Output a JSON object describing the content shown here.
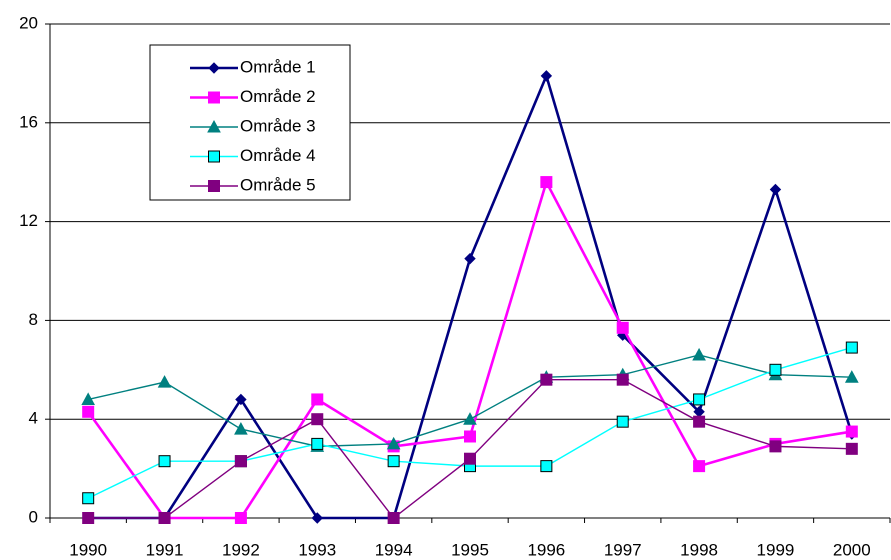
{
  "chart_data": {
    "type": "line",
    "categories": [
      "1990",
      "1991",
      "1992",
      "1993",
      "1994",
      "1995",
      "1996",
      "1997",
      "1998",
      "1999",
      "2000"
    ],
    "series": [
      {
        "name": "Område 1",
        "color": "#000080",
        "marker": "diamond",
        "values": [
          0,
          0,
          4.8,
          0,
          0,
          10.5,
          17.9,
          7.4,
          4.3,
          13.3,
          3.4
        ]
      },
      {
        "name": "Område 2",
        "color": "#FF00FF",
        "marker": "square",
        "values": [
          4.3,
          0,
          0,
          4.8,
          2.9,
          3.3,
          13.6,
          7.7,
          2.1,
          3.0,
          3.5
        ]
      },
      {
        "name": "Område 3",
        "color": "#008080",
        "marker": "triangle",
        "values": [
          4.8,
          5.5,
          3.6,
          2.9,
          3.0,
          4.0,
          5.7,
          5.8,
          6.6,
          5.8,
          5.7
        ]
      },
      {
        "name": "Område 4",
        "color": "#00FFFF",
        "marker": "square",
        "values": [
          0.8,
          2.3,
          2.3,
          3.0,
          2.3,
          2.1,
          2.1,
          3.9,
          4.8,
          6.0,
          6.9
        ]
      },
      {
        "name": "Område 5",
        "color": "#800080",
        "marker": "square",
        "values": [
          0,
          0,
          2.3,
          4.0,
          0,
          2.4,
          5.6,
          5.6,
          3.9,
          2.9,
          2.8
        ]
      }
    ],
    "ylim": [
      0,
      20
    ],
    "yticks": [
      0,
      4,
      8,
      12,
      16,
      20
    ],
    "grid": true,
    "legend": "upper-left"
  }
}
